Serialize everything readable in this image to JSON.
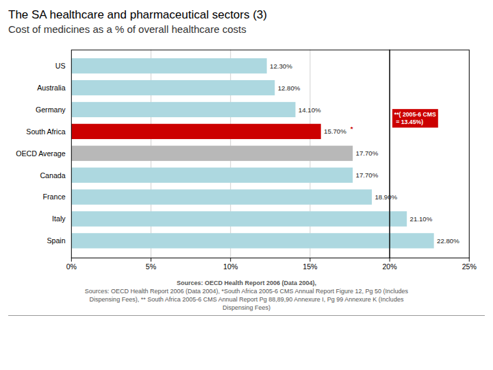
{
  "chart_data": {
    "type": "bar",
    "orientation": "horizontal",
    "title": "The SA healthcare and pharmaceutical sectors (3)",
    "subtitle": "Cost of medicines as a % of overall healthcare costs",
    "categories": [
      "US",
      "Australia",
      "Germany",
      "South Africa",
      "OECD Average",
      "Canada",
      "France",
      "Italy",
      "Spain"
    ],
    "values": [
      12.3,
      12.8,
      14.1,
      15.7,
      17.7,
      17.7,
      18.9,
      21.1,
      22.8
    ],
    "value_labels": [
      "12.30%",
      "12.80%",
      "14.10%",
      "15.70%",
      "17.70%",
      "17.70%",
      "18.90%",
      "21.10%",
      "22.80%"
    ],
    "colors": [
      "#add8e0",
      "#add8e0",
      "#add8e0",
      "#cc0000",
      "#b8b8b8",
      "#add8e0",
      "#add8e0",
      "#add8e0",
      "#add8e0"
    ],
    "xlim": [
      0,
      25
    ],
    "xticks": [
      {
        "value": 0,
        "label": "0%"
      },
      {
        "value": 5,
        "label": "5%"
      },
      {
        "value": 10,
        "label": "10%"
      },
      {
        "value": 15,
        "label": "15%"
      },
      {
        "value": 20,
        "label": "20%"
      },
      {
        "value": 25,
        "label": "25%"
      }
    ],
    "grid": true,
    "data_labels": true,
    "vlines": [
      20
    ],
    "annotations": [
      {
        "text": "*",
        "category": "South Africa",
        "color": "#cc0000"
      },
      {
        "text": "**( 2005-6 CMS\n = 13.45%)",
        "category": "South Africa",
        "color": "#cc0000"
      }
    ],
    "captions": [
      "Sources: OECD Health Report 2006 (Data 2004),",
      "Sources: OECD Health Report 2006 (Data 2004), *South Africa 2005-6 CMS Annual Report Figure 12, Pg 50 (Includes\nDispensing Fees), ** South Africa 2005-6 CMS Annual Report Pg 88,89,90 Annexure I, Pg 99 Annexure K (Includes\nDispensing Fees)"
    ]
  }
}
